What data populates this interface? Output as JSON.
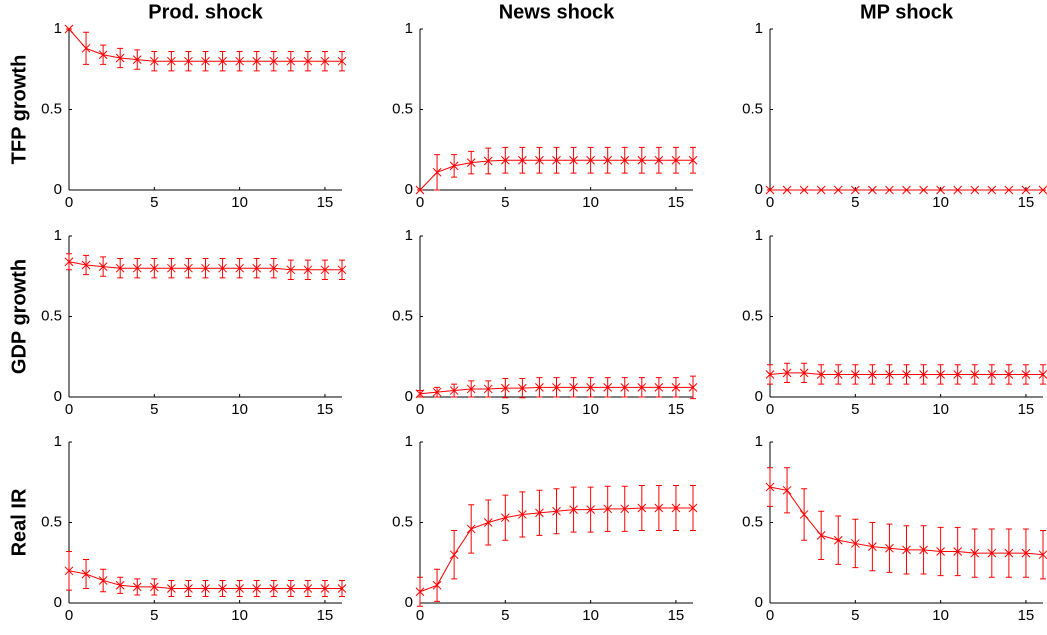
{
  "chart_data": [
    {
      "type": "line",
      "title": "Prod. shock",
      "ylabel": "TFP growth",
      "color": "#ff0000",
      "x": [
        0,
        1,
        2,
        3,
        4,
        5,
        6,
        7,
        8,
        9,
        10,
        11,
        12,
        13,
        14,
        15,
        16
      ],
      "values": [
        1,
        0.88,
        0.84,
        0.82,
        0.81,
        0.8,
        0.8,
        0.8,
        0.8,
        0.8,
        0.8,
        0.8,
        0.8,
        0.8,
        0.8,
        0.8,
        0.8
      ],
      "errors": [
        0,
        0.1,
        0.06,
        0.06,
        0.06,
        0.06,
        0.06,
        0.06,
        0.06,
        0.06,
        0.06,
        0.06,
        0.06,
        0.06,
        0.06,
        0.06,
        0.06
      ],
      "xlim": [
        0,
        16
      ],
      "ylim": [
        0,
        1
      ],
      "xticks": [
        0,
        5,
        10,
        15
      ],
      "yticks": [
        0,
        0.5,
        1
      ]
    },
    {
      "type": "line",
      "title": "News shock",
      "color": "#ff0000",
      "x": [
        0,
        1,
        2,
        3,
        4,
        5,
        6,
        7,
        8,
        9,
        10,
        11,
        12,
        13,
        14,
        15,
        16
      ],
      "values": [
        0,
        0.11,
        0.15,
        0.17,
        0.18,
        0.185,
        0.185,
        0.185,
        0.185,
        0.185,
        0.185,
        0.185,
        0.185,
        0.185,
        0.185,
        0.185,
        0.185
      ],
      "errors": [
        0,
        0.11,
        0.07,
        0.07,
        0.08,
        0.08,
        0.08,
        0.08,
        0.08,
        0.08,
        0.08,
        0.08,
        0.08,
        0.08,
        0.08,
        0.08,
        0.08
      ],
      "xlim": [
        0,
        16
      ],
      "ylim": [
        0,
        1
      ],
      "xticks": [
        0,
        5,
        10,
        15
      ],
      "yticks": [
        0,
        0.5,
        1
      ]
    },
    {
      "type": "line",
      "title": "MP shock",
      "color": "#ff0000",
      "x": [
        0,
        1,
        2,
        3,
        4,
        5,
        6,
        7,
        8,
        9,
        10,
        11,
        12,
        13,
        14,
        15,
        16
      ],
      "values": [
        0,
        0,
        0,
        0,
        0,
        0,
        0,
        0,
        0,
        0,
        0,
        0,
        0,
        0,
        0,
        0,
        0
      ],
      "errors": [
        0,
        0,
        0,
        0,
        0,
        0,
        0,
        0,
        0,
        0,
        0,
        0,
        0,
        0,
        0,
        0,
        0
      ],
      "xlim": [
        0,
        16
      ],
      "ylim": [
        0,
        1
      ],
      "xticks": [
        0,
        5,
        10,
        15
      ],
      "yticks": [
        0,
        0.5,
        1
      ]
    },
    {
      "type": "line",
      "ylabel": "GDP growth",
      "color": "#ff0000",
      "x": [
        0,
        1,
        2,
        3,
        4,
        5,
        6,
        7,
        8,
        9,
        10,
        11,
        12,
        13,
        14,
        15,
        16
      ],
      "values": [
        0.84,
        0.82,
        0.81,
        0.8,
        0.8,
        0.8,
        0.8,
        0.8,
        0.8,
        0.8,
        0.8,
        0.8,
        0.8,
        0.79,
        0.79,
        0.79,
        0.79
      ],
      "errors": [
        0.05,
        0.06,
        0.06,
        0.06,
        0.06,
        0.06,
        0.06,
        0.06,
        0.06,
        0.06,
        0.06,
        0.06,
        0.06,
        0.06,
        0.06,
        0.06,
        0.06
      ],
      "xlim": [
        0,
        16
      ],
      "ylim": [
        0,
        1
      ],
      "xticks": [
        0,
        5,
        10,
        15
      ],
      "yticks": [
        0,
        0.5,
        1
      ]
    },
    {
      "type": "line",
      "color": "#ff0000",
      "x": [
        0,
        1,
        2,
        3,
        4,
        5,
        6,
        7,
        8,
        9,
        10,
        11,
        12,
        13,
        14,
        15,
        16
      ],
      "values": [
        0.02,
        0.03,
        0.04,
        0.05,
        0.05,
        0.055,
        0.055,
        0.06,
        0.06,
        0.06,
        0.06,
        0.06,
        0.06,
        0.06,
        0.06,
        0.06,
        0.06
      ],
      "errors": [
        0.02,
        0.03,
        0.04,
        0.05,
        0.05,
        0.06,
        0.06,
        0.06,
        0.06,
        0.06,
        0.06,
        0.06,
        0.06,
        0.06,
        0.06,
        0.06,
        0.07
      ],
      "xlim": [
        0,
        16
      ],
      "ylim": [
        0,
        1
      ],
      "xticks": [
        0,
        5,
        10,
        15
      ],
      "yticks": [
        0,
        0.5,
        1
      ]
    },
    {
      "type": "line",
      "color": "#ff0000",
      "x": [
        0,
        1,
        2,
        3,
        4,
        5,
        6,
        7,
        8,
        9,
        10,
        11,
        12,
        13,
        14,
        15,
        16
      ],
      "values": [
        0.14,
        0.15,
        0.15,
        0.14,
        0.14,
        0.14,
        0.14,
        0.14,
        0.14,
        0.14,
        0.14,
        0.14,
        0.14,
        0.14,
        0.14,
        0.14,
        0.14
      ],
      "errors": [
        0.06,
        0.06,
        0.06,
        0.06,
        0.06,
        0.06,
        0.06,
        0.06,
        0.06,
        0.06,
        0.06,
        0.06,
        0.06,
        0.06,
        0.06,
        0.06,
        0.06
      ],
      "xlim": [
        0,
        16
      ],
      "ylim": [
        0,
        1
      ],
      "xticks": [
        0,
        5,
        10,
        15
      ],
      "yticks": [
        0,
        0.5,
        1
      ]
    },
    {
      "type": "line",
      "ylabel": "Real IR",
      "color": "#ff0000",
      "x": [
        0,
        1,
        2,
        3,
        4,
        5,
        6,
        7,
        8,
        9,
        10,
        11,
        12,
        13,
        14,
        15,
        16
      ],
      "values": [
        0.2,
        0.18,
        0.14,
        0.11,
        0.1,
        0.1,
        0.09,
        0.09,
        0.09,
        0.09,
        0.09,
        0.09,
        0.09,
        0.09,
        0.09,
        0.09,
        0.09
      ],
      "errors": [
        0.12,
        0.09,
        0.07,
        0.05,
        0.05,
        0.05,
        0.05,
        0.05,
        0.05,
        0.05,
        0.05,
        0.05,
        0.05,
        0.05,
        0.05,
        0.05,
        0.05
      ],
      "xlim": [
        0,
        16
      ],
      "ylim": [
        0,
        1
      ],
      "xticks": [
        0,
        5,
        10,
        15
      ],
      "yticks": [
        0,
        0.5,
        1
      ]
    },
    {
      "type": "line",
      "color": "#ff0000",
      "x": [
        0,
        1,
        2,
        3,
        4,
        5,
        6,
        7,
        8,
        9,
        10,
        11,
        12,
        13,
        14,
        15,
        16
      ],
      "values": [
        0.07,
        0.11,
        0.3,
        0.46,
        0.5,
        0.53,
        0.55,
        0.56,
        0.57,
        0.58,
        0.58,
        0.585,
        0.585,
        0.59,
        0.59,
        0.59,
        0.59
      ],
      "errors": [
        0.09,
        0.1,
        0.15,
        0.15,
        0.14,
        0.14,
        0.14,
        0.14,
        0.14,
        0.14,
        0.14,
        0.14,
        0.14,
        0.14,
        0.14,
        0.14,
        0.14
      ],
      "xlim": [
        0,
        16
      ],
      "ylim": [
        0,
        1
      ],
      "xticks": [
        0,
        5,
        10,
        15
      ],
      "yticks": [
        0,
        0.5,
        1
      ]
    },
    {
      "type": "line",
      "color": "#ff0000",
      "x": [
        0,
        1,
        2,
        3,
        4,
        5,
        6,
        7,
        8,
        9,
        10,
        11,
        12,
        13,
        14,
        15,
        16
      ],
      "values": [
        0.72,
        0.7,
        0.55,
        0.42,
        0.39,
        0.37,
        0.35,
        0.34,
        0.33,
        0.33,
        0.32,
        0.32,
        0.31,
        0.31,
        0.31,
        0.31,
        0.3
      ],
      "errors": [
        0.12,
        0.14,
        0.16,
        0.15,
        0.15,
        0.15,
        0.15,
        0.15,
        0.15,
        0.15,
        0.15,
        0.15,
        0.15,
        0.15,
        0.15,
        0.15,
        0.15
      ],
      "xlim": [
        0,
        16
      ],
      "ylim": [
        0,
        1
      ],
      "xticks": [
        0,
        5,
        10,
        15
      ],
      "yticks": [
        0,
        0.5,
        1
      ]
    }
  ]
}
